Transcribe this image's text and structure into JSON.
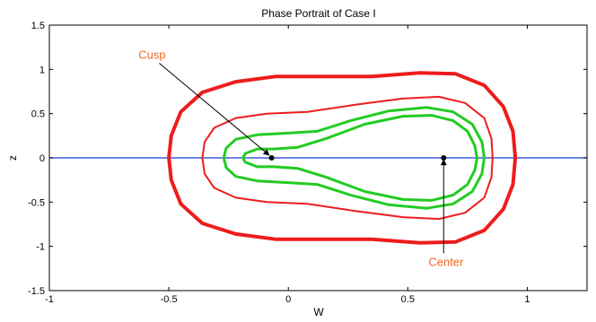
{
  "chart_data": {
    "type": "line",
    "title": "Phase Portrait of Case I",
    "xlabel": "W",
    "ylabel": "z",
    "xlim": [
      -1,
      1.25
    ],
    "ylim": [
      -1.5,
      1.5
    ],
    "xticks": [
      -1,
      -0.5,
      0,
      0.5,
      1
    ],
    "xtick_labels": [
      "-1",
      "-0.5",
      "0",
      "0.5",
      "1"
    ],
    "yticks": [
      -1.5,
      -1,
      -0.5,
      0,
      0.5,
      1,
      1.5
    ],
    "ytick_labels": [
      "-1.5",
      "-1",
      "-0.5",
      "0",
      "0.5",
      "1",
      "1.5"
    ],
    "grid": false,
    "colors": {
      "red": "#ee1c1c",
      "green": "#22cc22",
      "axis_line": "#3b5bdb",
      "annotation": "#f26522",
      "point": "#000000"
    },
    "horizontal_line": {
      "y": 0,
      "color": "#3b5bdb"
    },
    "series": [
      {
        "color": "#ee1c1c",
        "width": 4,
        "points": [
          [
            -0.5,
            0
          ],
          [
            -0.49,
            0.25
          ],
          [
            -0.45,
            0.52
          ],
          [
            -0.36,
            0.74
          ],
          [
            -0.22,
            0.86
          ],
          [
            -0.05,
            0.92
          ],
          [
            0.15,
            0.92
          ],
          [
            0.35,
            0.92
          ],
          [
            0.55,
            0.96
          ],
          [
            0.7,
            0.95
          ],
          [
            0.82,
            0.82
          ],
          [
            0.9,
            0.58
          ],
          [
            0.94,
            0.3
          ],
          [
            0.95,
            0
          ],
          [
            0.94,
            -0.3
          ],
          [
            0.9,
            -0.58
          ],
          [
            0.82,
            -0.82
          ],
          [
            0.7,
            -0.95
          ],
          [
            0.55,
            -0.96
          ],
          [
            0.35,
            -0.92
          ],
          [
            0.15,
            -0.92
          ],
          [
            -0.05,
            -0.92
          ],
          [
            -0.22,
            -0.86
          ],
          [
            -0.36,
            -0.74
          ],
          [
            -0.45,
            -0.52
          ],
          [
            -0.49,
            -0.25
          ],
          [
            -0.5,
            0
          ]
        ]
      },
      {
        "color": "#ee1c1c",
        "width": 2,
        "points": [
          [
            -0.36,
            0
          ],
          [
            -0.35,
            0.18
          ],
          [
            -0.31,
            0.34
          ],
          [
            -0.22,
            0.45
          ],
          [
            -0.09,
            0.5
          ],
          [
            0.08,
            0.52
          ],
          [
            0.28,
            0.6
          ],
          [
            0.48,
            0.67
          ],
          [
            0.63,
            0.69
          ],
          [
            0.74,
            0.62
          ],
          [
            0.82,
            0.45
          ],
          [
            0.85,
            0.22
          ],
          [
            0.855,
            0
          ],
          [
            0.85,
            -0.22
          ],
          [
            0.82,
            -0.45
          ],
          [
            0.74,
            -0.62
          ],
          [
            0.63,
            -0.69
          ],
          [
            0.48,
            -0.67
          ],
          [
            0.28,
            -0.6
          ],
          [
            0.08,
            -0.52
          ],
          [
            -0.09,
            -0.5
          ],
          [
            -0.22,
            -0.45
          ],
          [
            -0.31,
            -0.34
          ],
          [
            -0.35,
            -0.18
          ],
          [
            -0.36,
            0
          ]
        ]
      },
      {
        "color": "#22cc22",
        "width": 3,
        "points": [
          [
            -0.27,
            0
          ],
          [
            -0.26,
            0.11
          ],
          [
            -0.22,
            0.21
          ],
          [
            -0.13,
            0.26
          ],
          [
            0.0,
            0.28
          ],
          [
            0.12,
            0.3
          ],
          [
            0.26,
            0.42
          ],
          [
            0.42,
            0.53
          ],
          [
            0.58,
            0.57
          ],
          [
            0.69,
            0.52
          ],
          [
            0.77,
            0.38
          ],
          [
            0.81,
            0.18
          ],
          [
            0.82,
            0
          ],
          [
            0.81,
            -0.18
          ],
          [
            0.77,
            -0.38
          ],
          [
            0.69,
            -0.52
          ],
          [
            0.58,
            -0.57
          ],
          [
            0.42,
            -0.53
          ],
          [
            0.26,
            -0.42
          ],
          [
            0.12,
            -0.3
          ],
          [
            0.0,
            -0.28
          ],
          [
            -0.13,
            -0.26
          ],
          [
            -0.22,
            -0.21
          ],
          [
            -0.26,
            -0.11
          ],
          [
            -0.27,
            0
          ]
        ]
      },
      {
        "color": "#22cc22",
        "width": 3,
        "points": [
          [
            -0.19,
            0
          ],
          [
            -0.18,
            0.05
          ],
          [
            -0.13,
            0.1
          ],
          [
            -0.06,
            0.1
          ],
          [
            0.04,
            0.12
          ],
          [
            0.16,
            0.22
          ],
          [
            0.32,
            0.38
          ],
          [
            0.48,
            0.47
          ],
          [
            0.6,
            0.48
          ],
          [
            0.69,
            0.42
          ],
          [
            0.75,
            0.3
          ],
          [
            0.78,
            0.14
          ],
          [
            0.79,
            0
          ],
          [
            0.78,
            -0.14
          ],
          [
            0.75,
            -0.3
          ],
          [
            0.69,
            -0.42
          ],
          [
            0.6,
            -0.48
          ],
          [
            0.48,
            -0.47
          ],
          [
            0.32,
            -0.38
          ],
          [
            0.16,
            -0.22
          ],
          [
            0.04,
            -0.12
          ],
          [
            -0.06,
            -0.1
          ],
          [
            -0.13,
            -0.1
          ],
          [
            -0.18,
            -0.05
          ],
          [
            -0.19,
            0
          ]
        ]
      }
    ],
    "points": [
      {
        "x": -0.07,
        "y": 0,
        "color": "#000000"
      },
      {
        "x": 0.65,
        "y": 0,
        "color": "#000000"
      }
    ],
    "annotations": [
      {
        "text": "Cusp",
        "label_x": -0.57,
        "label_y": 1.12,
        "arrow_to": [
          -0.08,
          0.03
        ]
      },
      {
        "text": "Center",
        "label_x": 0.66,
        "label_y": -1.22,
        "arrow_to": [
          0.65,
          -0.02
        ]
      }
    ]
  }
}
